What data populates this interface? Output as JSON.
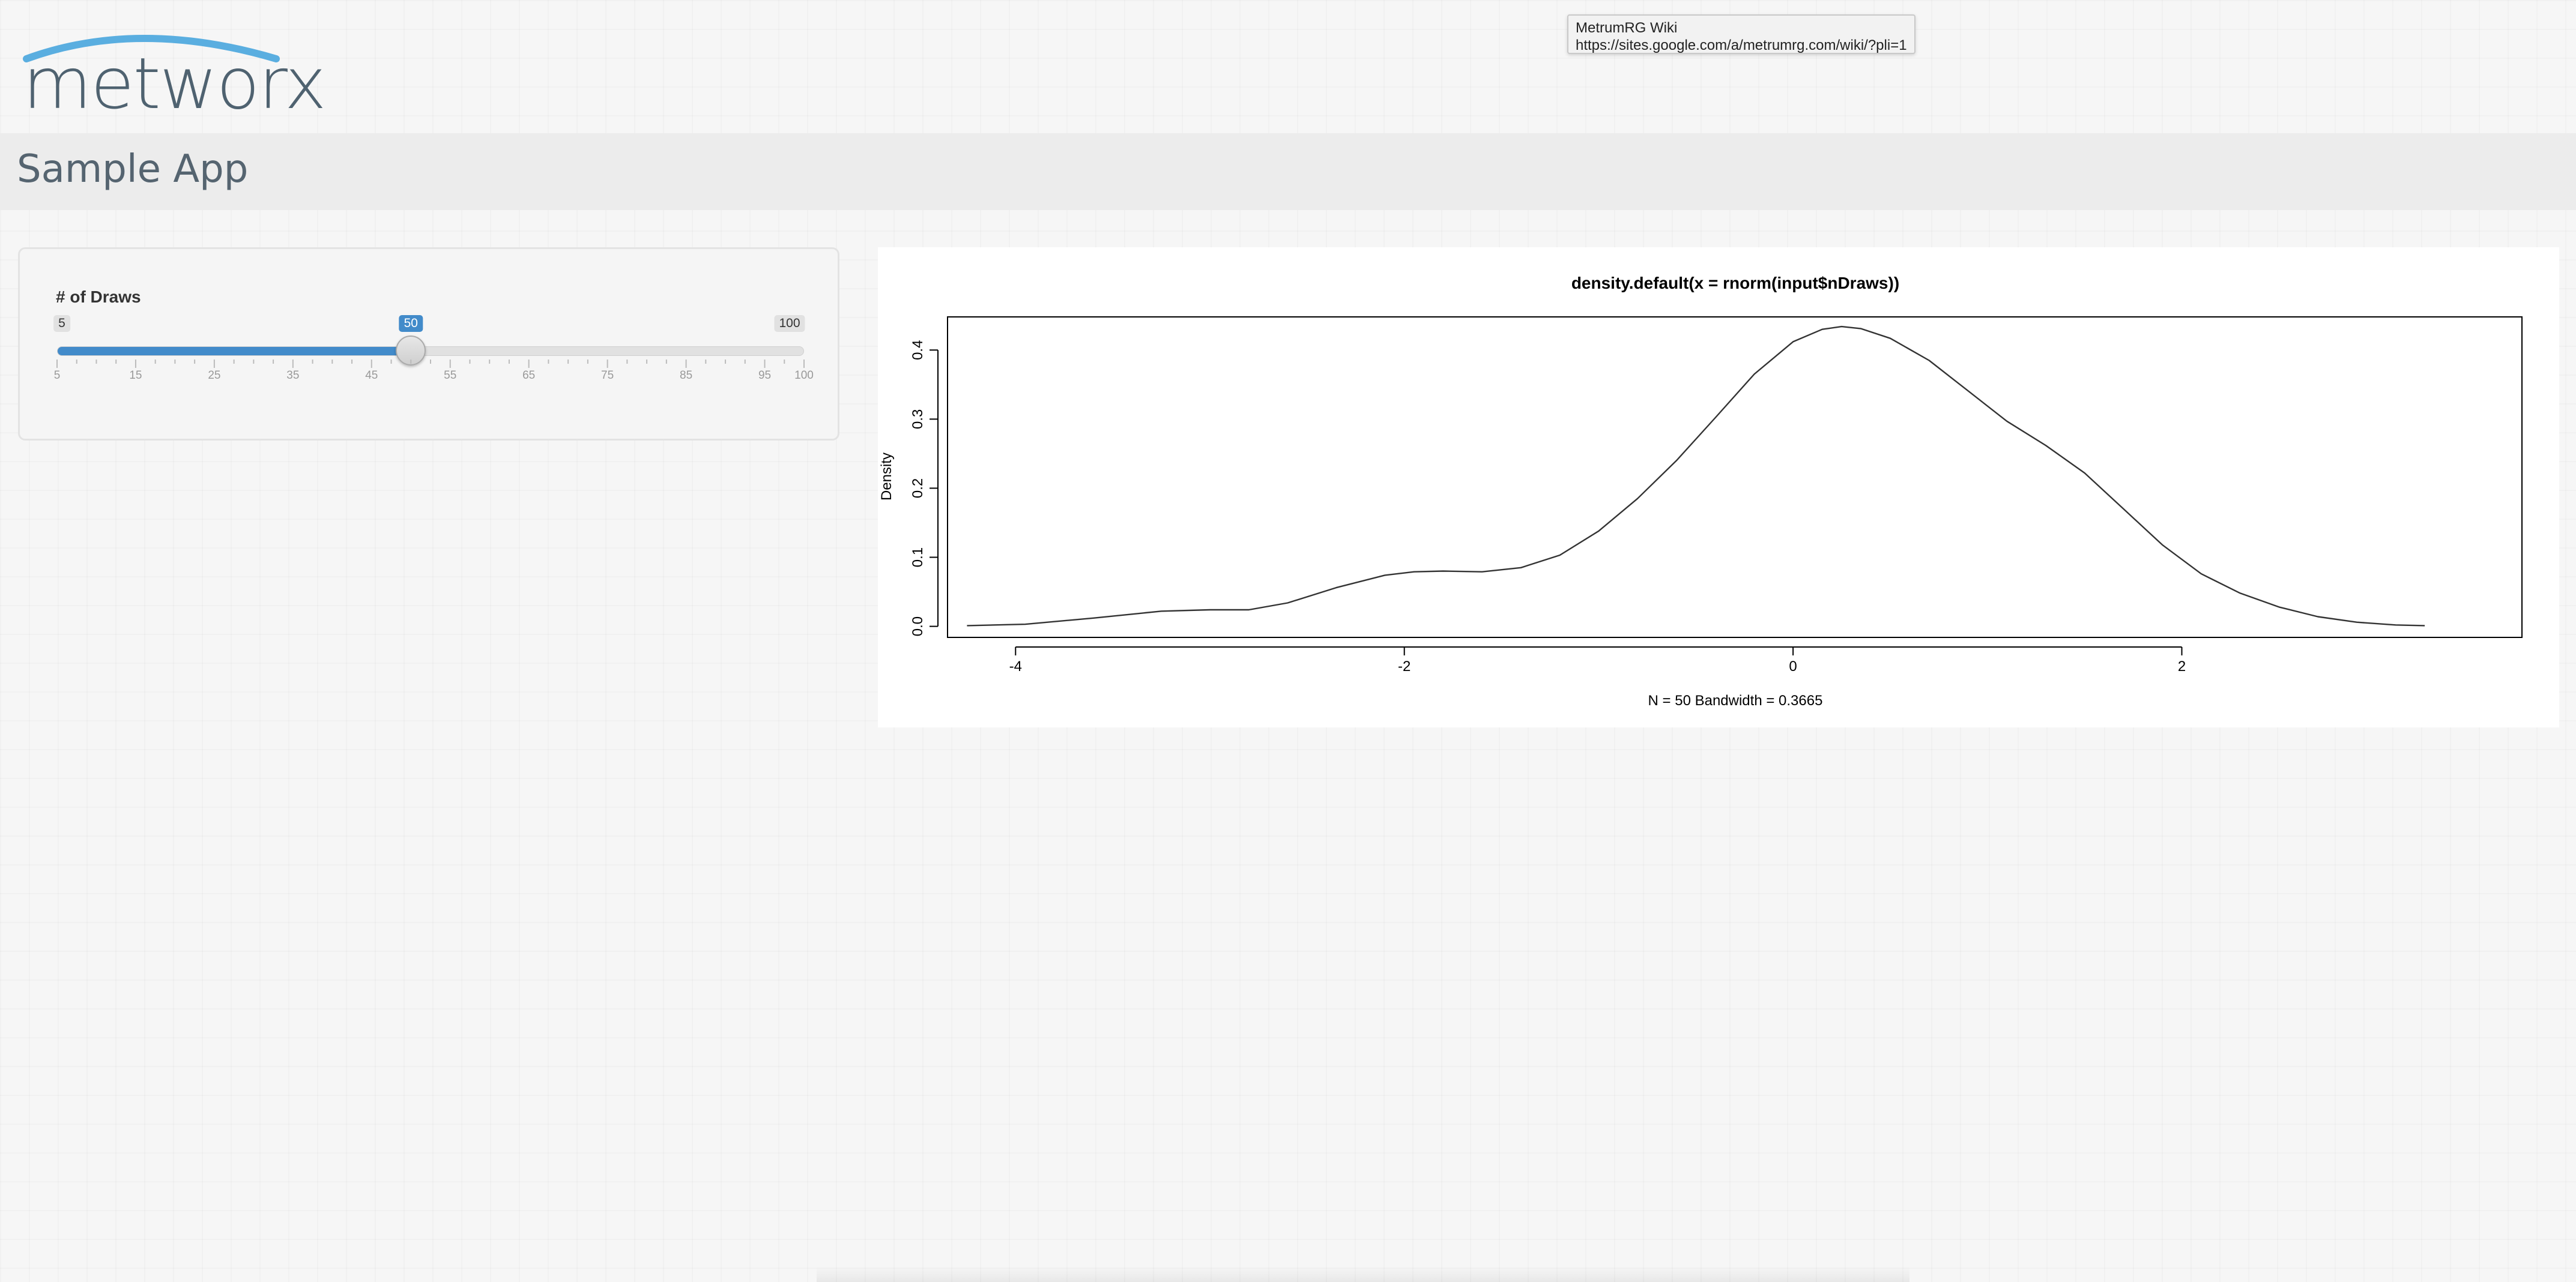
{
  "logo": {
    "text": "metworx",
    "arc_color": "#5aaee0",
    "text_color": "#4f6270"
  },
  "tooltip": {
    "title": "MetrumRG Wiki",
    "url": "https://sites.google.com/a/metrumrg.com/wiki/?pli=1"
  },
  "app": {
    "title": "Sample App"
  },
  "slider": {
    "label": "# of Draws",
    "min": 5,
    "max": 100,
    "value": 50,
    "min_label": "5",
    "max_label": "100",
    "value_label": "50",
    "tick_labels": [
      "5",
      "15",
      "25",
      "35",
      "45",
      "55",
      "65",
      "75",
      "85",
      "95",
      "100"
    ],
    "accent": "#428bca"
  },
  "chart_data": {
    "type": "line",
    "title": "density.default(x = rnorm(input$nDraws))",
    "xlabel": "N = 50   Bandwidth = 0.3665",
    "ylabel": "Density",
    "xlim": [
      -4.35,
      3.75
    ],
    "ylim": [
      -0.016,
      0.448
    ],
    "xticks": [
      -4,
      -2,
      0,
      2
    ],
    "xtick_labels": [
      "-4",
      "-2",
      "0",
      "2"
    ],
    "yticks": [
      0.0,
      0.1,
      0.2,
      0.3,
      0.4
    ],
    "ytick_labels": [
      "0.0",
      "0.1",
      "0.2",
      "0.3",
      "0.4"
    ],
    "series": [
      {
        "x": [
          -4.25,
          -3.95,
          -3.6,
          -3.25,
          -3.0,
          -2.8,
          -2.6,
          -2.35,
          -2.1,
          -1.95,
          -1.8,
          -1.6,
          -1.4,
          -1.2,
          -1.0,
          -0.8,
          -0.6,
          -0.4,
          -0.2,
          0.0,
          0.15,
          0.25,
          0.35,
          0.5,
          0.7,
          0.9,
          1.1,
          1.3,
          1.5,
          1.7,
          1.9,
          2.1,
          2.3,
          2.5,
          2.7,
          2.9,
          3.1,
          3.25
        ],
        "y": [
          0.001,
          0.003,
          0.012,
          0.022,
          0.024,
          0.024,
          0.034,
          0.056,
          0.074,
          0.079,
          0.08,
          0.079,
          0.085,
          0.103,
          0.138,
          0.185,
          0.24,
          0.302,
          0.365,
          0.412,
          0.43,
          0.434,
          0.431,
          0.417,
          0.385,
          0.341,
          0.297,
          0.262,
          0.222,
          0.17,
          0.118,
          0.076,
          0.048,
          0.028,
          0.014,
          0.006,
          0.002,
          0.001
        ]
      }
    ],
    "grid": false,
    "line_color": "#333333"
  }
}
